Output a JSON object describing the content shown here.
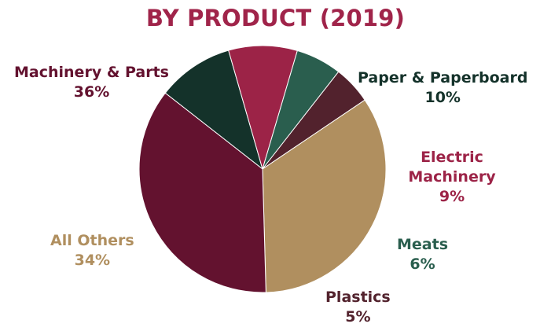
{
  "title": "BY PRODUCT (2019)",
  "colors": {
    "title": "#a0244a"
  },
  "chart_data": {
    "type": "pie",
    "title": "BY PRODUCT (2019)",
    "slices": [
      {
        "label": "Paper & Paperboard",
        "value": 10,
        "value_label": "10%",
        "color": "#14322a"
      },
      {
        "label": "Electric Machinery",
        "value": 9,
        "value_label": "9%",
        "color": "#9c2347"
      },
      {
        "label": "Meats",
        "value": 6,
        "value_label": "6%",
        "color": "#2a5e4e"
      },
      {
        "label": "Plastics",
        "value": 5,
        "value_label": "5%",
        "color": "#52222d"
      },
      {
        "label": "All Others",
        "value": 34,
        "value_label": "34%",
        "color": "#b08f5f"
      },
      {
        "label": "Machinery & Parts",
        "value": 36,
        "value_label": "36%",
        "color": "#63122f"
      }
    ]
  }
}
